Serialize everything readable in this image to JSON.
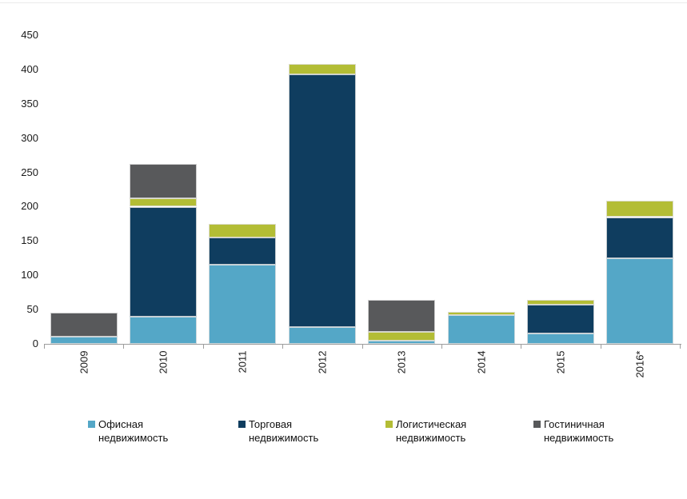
{
  "page": {
    "background": "#ffffff",
    "top_rule_color": "#ebebeb"
  },
  "chart_data": {
    "type": "bar",
    "stacked": true,
    "title": "",
    "xlabel": "",
    "ylabel": "",
    "categories": [
      "2009",
      "2010",
      "2011",
      "2012",
      "2013",
      "2014",
      "2015",
      "2016*"
    ],
    "series": [
      {
        "name": "Офисная недвижимость",
        "color": "#54A7C7",
        "values": [
          10,
          40,
          115,
          25,
          5,
          42,
          15,
          125
        ]
      },
      {
        "name": "Торговая недвижимость",
        "color": "#0F3D5F",
        "values": [
          0,
          160,
          40,
          368,
          0,
          0,
          42,
          60
        ]
      },
      {
        "name": "Логистическая недвижимость",
        "color": "#B3BD35",
        "values": [
          0,
          12,
          20,
          15,
          13,
          5,
          7,
          23
        ]
      },
      {
        "name": "Гостиничная недвижимость",
        "color": "#58595B",
        "values": [
          35,
          50,
          0,
          0,
          47,
          0,
          0,
          0
        ]
      }
    ],
    "totals": [
      45,
      262,
      175,
      408,
      65,
      47,
      64,
      208
    ],
    "y_ticks": [
      0,
      50,
      100,
      150,
      200,
      250,
      300,
      350,
      400,
      450
    ],
    "ylim": [
      0,
      450
    ],
    "grid": false,
    "legend_position": "bottom",
    "axis_color": "#9d9d9d",
    "tick_label_color": "#1a1a1a",
    "x_label_rotation_deg": -90
  },
  "legend": {
    "items": [
      {
        "line1": "Офисная",
        "line2": "недвижимость",
        "color": "#54A7C7"
      },
      {
        "line1": "Торговая",
        "line2": "недвижимость",
        "color": "#0F3D5F"
      },
      {
        "line1": "Логистическая",
        "line2": "недвижимость",
        "color": "#B3BD35"
      },
      {
        "line1": "Гостиничная",
        "line2": "недвижимость",
        "color": "#58595B"
      }
    ]
  }
}
